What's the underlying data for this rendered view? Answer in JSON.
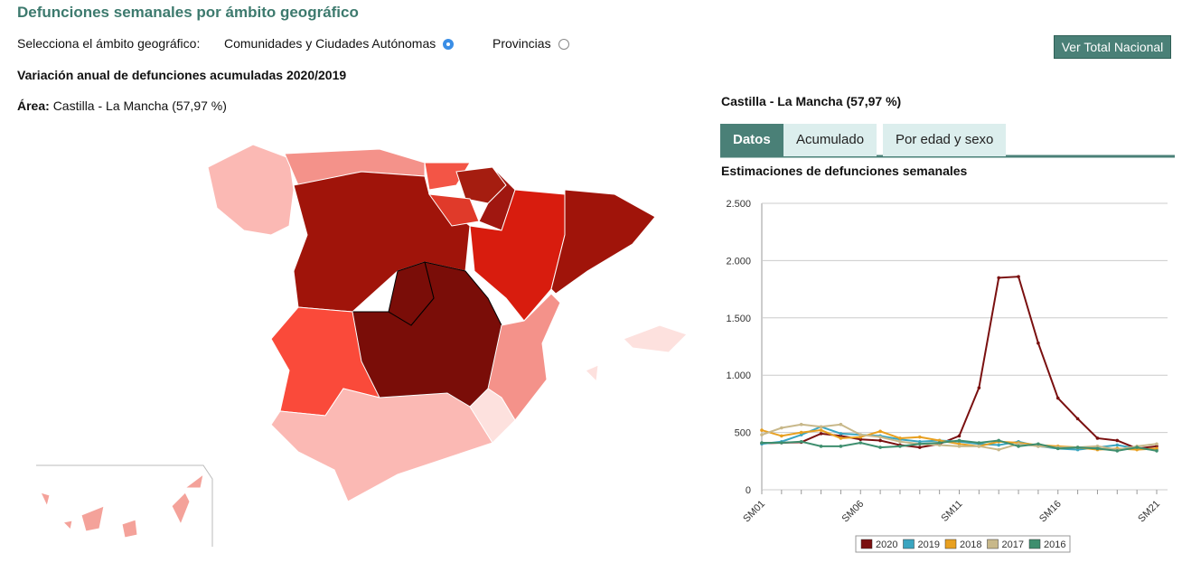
{
  "header": {
    "title": "Defunciones semanales por ámbito geográfico",
    "selector_label": "Selecciona el ámbito geográfico:",
    "option_1": "Comunidades y Ciudades Autónomas",
    "option_2": "Provincias",
    "button": "Ver Total Nacional"
  },
  "map": {
    "title": "Variación anual de defunciones acumuladas 2020/2019",
    "area_label": "Área:",
    "area_value": "Castilla - La Mancha (57,97 %)"
  },
  "panel": {
    "heading": "Castilla - La Mancha (57,97 %)",
    "tabs": [
      "Datos",
      "Acumulado",
      "Por edad y sexo"
    ]
  },
  "chart_data": {
    "type": "line",
    "title": "Estimaciones de defunciones semanales",
    "categories": [
      "SM01",
      null,
      null,
      null,
      null,
      "SM06",
      null,
      null,
      null,
      null,
      "SM11",
      null,
      null,
      null,
      null,
      "SM16",
      null,
      null,
      null,
      null,
      "SM21"
    ],
    "series": [
      {
        "name": "2020",
        "color": "#7a1010",
        "values": [
          405,
          410,
          415,
          490,
          470,
          440,
          430,
          390,
          370,
          400,
          470,
          890,
          1850,
          1860,
          1280,
          800,
          620,
          450,
          430,
          360,
          380
        ]
      },
      {
        "name": "2019",
        "color": "#3aa5c0",
        "values": [
          400,
          420,
          480,
          550,
          490,
          480,
          470,
          440,
          420,
          430,
          420,
          400,
          390,
          420,
          380,
          360,
          350,
          370,
          390,
          360,
          350
        ]
      },
      {
        "name": "2018",
        "color": "#e8a020",
        "values": [
          520,
          470,
          500,
          520,
          450,
          460,
          510,
          450,
          460,
          430,
          400,
          380,
          420,
          410,
          390,
          380,
          370,
          350,
          360,
          350,
          360
        ]
      },
      {
        "name": "2017",
        "color": "#c8b88a",
        "values": [
          480,
          540,
          570,
          550,
          570,
          480,
          460,
          420,
          400,
          390,
          380,
          380,
          350,
          400,
          380,
          370,
          370,
          380,
          350,
          380,
          400
        ]
      },
      {
        "name": "2016",
        "color": "#3e8e6e",
        "values": [
          410,
          410,
          420,
          380,
          380,
          410,
          370,
          380,
          400,
          410,
          430,
          410,
          430,
          380,
          400,
          360,
          370,
          360,
          340,
          370,
          340
        ]
      }
    ],
    "ylim": [
      0,
      2500
    ],
    "yticks": [
      0,
      500,
      {
        "value": 1000,
        "label": "1.000"
      },
      {
        "value": 1500,
        "label": "1.500"
      },
      {
        "value": 2000,
        "label": "2.000"
      },
      {
        "value": 2500,
        "label": "2.500"
      }
    ],
    "grid": true,
    "legend": "bottom"
  }
}
